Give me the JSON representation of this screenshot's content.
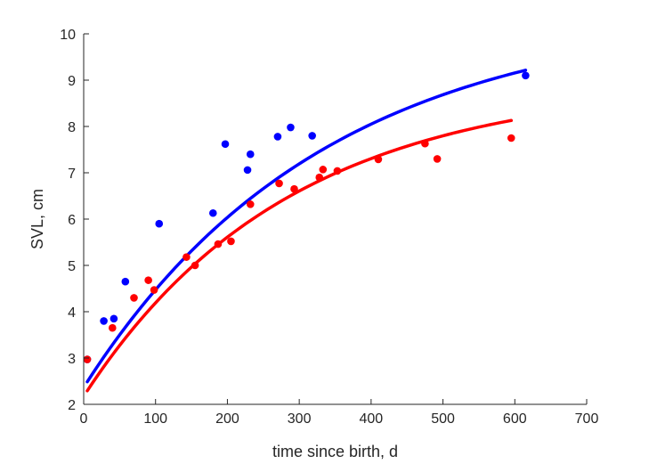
{
  "chart_data": {
    "type": "scatter",
    "title": "",
    "xlabel": "time since birth, d",
    "ylabel": "SVL, cm",
    "xlim": [
      0,
      700
    ],
    "ylim": [
      2,
      10
    ],
    "xticks": [
      0,
      100,
      200,
      300,
      400,
      500,
      600,
      700
    ],
    "yticks": [
      2,
      3,
      4,
      5,
      6,
      7,
      8,
      9,
      10
    ],
    "grid": false,
    "legend": "none",
    "series": [
      {
        "color": "#0000ff",
        "points": [
          [
            5,
            2.97
          ],
          [
            28,
            3.8
          ],
          [
            42,
            3.85
          ],
          [
            58,
            4.65
          ],
          [
            105,
            5.9
          ],
          [
            180,
            6.13
          ],
          [
            197,
            7.62
          ],
          [
            228,
            7.06
          ],
          [
            232,
            7.4
          ],
          [
            270,
            7.78
          ],
          [
            288,
            7.98
          ],
          [
            318,
            7.8
          ],
          [
            615,
            9.1
          ]
        ],
        "fit": {
          "x": [
            5,
            615
          ],
          "Linf": 10.5,
          "k": 0.003,
          "t0": -85.1
        }
      },
      {
        "color": "#ff0000",
        "points": [
          [
            5,
            2.97
          ],
          [
            40,
            3.65
          ],
          [
            70,
            4.3
          ],
          [
            90,
            4.68
          ],
          [
            98,
            4.47
          ],
          [
            143,
            5.18
          ],
          [
            155,
            5.0
          ],
          [
            187,
            5.46
          ],
          [
            205,
            5.52
          ],
          [
            232,
            6.32
          ],
          [
            272,
            6.77
          ],
          [
            293,
            6.65
          ],
          [
            328,
            6.9
          ],
          [
            333,
            7.07
          ],
          [
            353,
            7.04
          ],
          [
            410,
            7.29
          ],
          [
            475,
            7.63
          ],
          [
            492,
            7.3
          ],
          [
            595,
            7.75
          ]
        ],
        "fit": {
          "x": [
            5,
            595
          ],
          "Linf": 8.96,
          "k": 0.00353,
          "t0": -78.7
        }
      }
    ]
  }
}
